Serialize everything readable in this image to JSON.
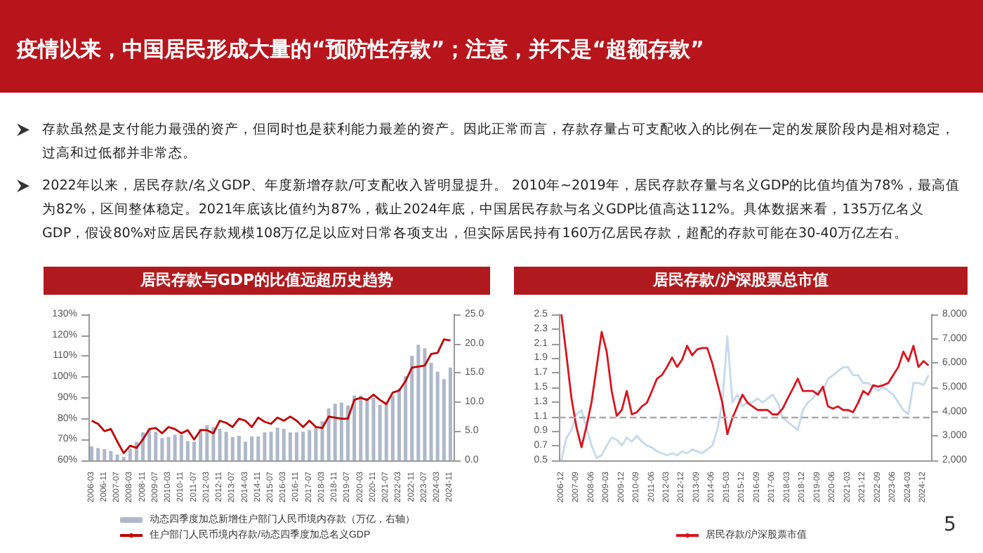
{
  "chart_data": [
    {
      "type": "other",
      "title": "疫情以来，中国居民形成大量的“预防性存款”；注意，并不是“超额存款”",
      "annotations": [
        "存款虽然是支付能力最强的资产，但同时也是获利能力最差的资产。因此正常而言，存款存量占可支配收入的比例在一定的发展阶段内是相对稳定，过高和过低都并非常态。",
        "2022年以来，居民存款/名义GDP、年度新增存款/可支配收入皆明显提升。 2010年~2019年，居民存款存量与名义GDP的比值均值为78%，最高值为82%，区间整体稳定。2021年底该比值约为87%，截止2024年底，中国居民存款与名义GDP比值高达112%。具体数据来看，135万亿名义GDP，假设80%对应居民存款规模108万亿足以应对日常各项支出，但实际居民持有160万亿居民存款，超配的存款可能在30-40万亿左右。",
        "5"
      ]
    },
    {
      "type": "bar",
      "title": "居民存款与GDP的比值远超历史趋势",
      "legend": "bottom",
      "grid": false,
      "categories": [
        "2006-03",
        null,
        "2006-11",
        null,
        "2007-07",
        null,
        "2008-03",
        null,
        "2008-11",
        null,
        "2009-07",
        null,
        "2010-03",
        null,
        "2010-11",
        null,
        "2011-07",
        null,
        "2012-03",
        null,
        "2012-11",
        null,
        "2013-07",
        null,
        "2014-03",
        null,
        "2014-11",
        null,
        "2015-07",
        null,
        "2016-03",
        null,
        "2016-11",
        null,
        "2017-07",
        null,
        "2018-03",
        null,
        "2018-11",
        null,
        "2019-07",
        null,
        "2020-03",
        null,
        "2020-11",
        null,
        "2021-07",
        null,
        "2022-03",
        null,
        "2022-11",
        null,
        "2023-07",
        null,
        "2024-03",
        null,
        "2024-11"
      ],
      "ylim": [
        60,
        130
      ],
      "yticks": [
        {
          "value": 60,
          "label": "60%"
        },
        {
          "value": 70,
          "label": "70%"
        },
        {
          "value": 80,
          "label": "80%"
        },
        {
          "value": 90,
          "label": "90%"
        },
        {
          "value": 100,
          "label": "100%"
        },
        {
          "value": 110,
          "label": "110%"
        },
        {
          "value": 120,
          "label": "120%"
        },
        {
          "value": 130,
          "label": "130%"
        }
      ],
      "y2lim": [
        0,
        25
      ],
      "y2ticks": [
        {
          "value": 0,
          "label": "0.0"
        },
        {
          "value": 5,
          "label": "5.0"
        },
        {
          "value": 10,
          "label": "10.0"
        },
        {
          "value": 15,
          "label": "15.0"
        },
        {
          "value": 20,
          "label": "20.0"
        },
        {
          "value": 25,
          "label": "25.0"
        }
      ],
      "series": [
        {
          "type": "bar",
          "axis": "y2",
          "name": "动态四季度加总新增住户部门人民币境内存款（万亿，右轴）",
          "color": "#aeb8ca",
          "values": [
            2.4,
            2.1,
            1.9,
            1.6,
            1.0,
            0.6,
            2.0,
            3.2,
            4.8,
            5.4,
            4.9,
            3.8,
            4.0,
            4.4,
            4.4,
            3.3,
            3.2,
            5.4,
            6.0,
            5.7,
            5.4,
            4.9,
            4.0,
            4.2,
            3.2,
            4.1,
            4.1,
            4.8,
            4.9,
            5.6,
            5.4,
            4.8,
            4.8,
            4.9,
            5.2,
            5.6,
            6.7,
            8.9,
            9.7,
            9.9,
            9.4,
            11.1,
            11.1,
            10.7,
            10.7,
            9.5,
            9.9,
            11.1,
            12.3,
            14.4,
            17.9,
            19.8,
            19.2,
            16.7,
            15.2,
            13.9,
            15.9
          ]
        },
        {
          "type": "line",
          "marker": "none",
          "name": "住户部门人民币境内存款/动态四季度加总名义GDP",
          "color": "#c00000",
          "values": [
            79,
            77.5,
            74,
            75,
            69,
            63.5,
            67,
            66,
            70,
            75,
            75.5,
            73,
            76,
            75,
            73,
            74.5,
            70,
            74.5,
            74.5,
            73,
            79,
            78,
            76,
            80,
            79,
            76,
            80.5,
            78.5,
            77.5,
            80.5,
            79,
            81,
            79,
            76,
            79,
            76,
            75.5,
            81,
            80.5,
            80,
            80,
            89,
            90,
            89,
            91.5,
            89,
            87,
            92.5,
            93.5,
            98,
            104.5,
            105,
            105.5,
            111,
            111.5,
            118,
            117.5
          ]
        }
      ]
    },
    {
      "type": "line",
      "title": "居民存款/沪深股票总市值",
      "legend": "bottom",
      "grid": false,
      "marker": "none",
      "categories": [
        "2006-12",
        null,
        null,
        "2007-09",
        null,
        null,
        "2008-06",
        null,
        null,
        "2009-03",
        null,
        null,
        "2009-12",
        null,
        null,
        "2010-09",
        null,
        null,
        "2011-06",
        null,
        null,
        "2012-03",
        null,
        null,
        "2012-12",
        null,
        null,
        "2013-09",
        null,
        null,
        "2014-06",
        null,
        null,
        "2015-03",
        null,
        null,
        "2015-12",
        null,
        null,
        "2016-09",
        null,
        null,
        "2017-06",
        null,
        null,
        "2018-03",
        null,
        null,
        "2018-12",
        null,
        null,
        "2019-09",
        null,
        null,
        "2020-06",
        null,
        null,
        "2021-03",
        null,
        null,
        "2021-12",
        null,
        null,
        "2022-09",
        null,
        null,
        "2023-06",
        null,
        null,
        "2024-03",
        null,
        null,
        "2024-12",
        null
      ],
      "ylim": [
        0.5,
        2.5
      ],
      "yticks": [
        0.5,
        0.7,
        0.9,
        1.1,
        1.3,
        1.5,
        1.7,
        1.9,
        2.1,
        2.3,
        2.5
      ],
      "y2lim": [
        2000,
        8000
      ],
      "y2ticks": [
        {
          "value": 2000,
          "label": "2,000"
        },
        {
          "value": 3000,
          "label": "3,000"
        },
        {
          "value": 4000,
          "label": "4,000"
        },
        {
          "value": 5000,
          "label": "5,000"
        },
        {
          "value": 6000,
          "label": "6,000"
        },
        {
          "value": 7000,
          "label": "7,000"
        },
        {
          "value": 8000,
          "label": "8,000"
        }
      ],
      "ref_lines": [
        {
          "axis": "y",
          "value": 1.1,
          "color": "#aaaaaa",
          "line_style": "dashed"
        }
      ],
      "series": [
        {
          "name": "居民存款/沪深股票市值",
          "color": "#d9141e",
          "values": [
            2.5,
            1.94,
            1.35,
            0.95,
            0.68,
            0.97,
            1.3,
            1.78,
            2.26,
            1.99,
            1.45,
            1.11,
            1.19,
            1.45,
            1.13,
            1.16,
            1.24,
            1.29,
            1.45,
            1.62,
            1.67,
            1.78,
            1.91,
            1.78,
            1.88,
            2.07,
            1.94,
            2.02,
            2.04,
            2.04,
            1.83,
            1.56,
            1.29,
            0.86,
            1.08,
            1.24,
            1.4,
            1.29,
            1.24,
            1.19,
            1.19,
            1.19,
            1.13,
            1.13,
            1.21,
            1.35,
            1.48,
            1.62,
            1.45,
            1.45,
            1.45,
            1.4,
            1.51,
            1.24,
            1.21,
            1.24,
            1.19,
            1.19,
            1.16,
            1.29,
            1.45,
            1.4,
            1.53,
            1.51,
            1.53,
            1.56,
            1.67,
            1.78,
            1.99,
            1.86,
            2.07,
            1.78,
            1.86,
            1.8
          ]
        },
        {
          "axis": "y2",
          "color": "#c5d9ec",
          "values": [
            2000,
            2930,
            3250,
            3900,
            4060,
            3330,
            2610,
            2100,
            2210,
            2610,
            2930,
            2850,
            2610,
            2930,
            2770,
            3010,
            2770,
            2610,
            2530,
            2370,
            2290,
            2210,
            2290,
            2210,
            2370,
            2290,
            2450,
            2370,
            2290,
            2450,
            2610,
            3250,
            4380,
            7110,
            4380,
            4700,
            4220,
            4380,
            4380,
            4540,
            4380,
            4540,
            4700,
            4380,
            3740,
            3580,
            3410,
            3250,
            4060,
            4380,
            4540,
            4860,
            4860,
            5340,
            5500,
            5670,
            5830,
            5830,
            5500,
            5500,
            5180,
            5180,
            5020,
            4860,
            5020,
            4860,
            4700,
            4380,
            4060,
            3900,
            5180,
            5180,
            5100,
            5500
          ]
        }
      ]
    }
  ]
}
